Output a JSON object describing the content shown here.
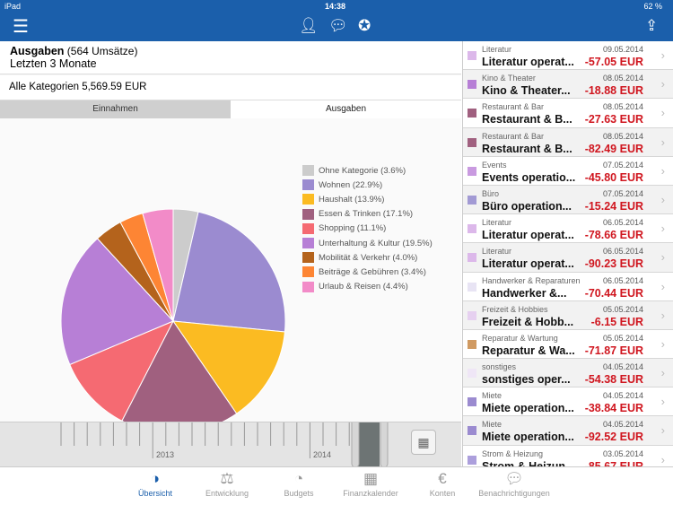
{
  "status": {
    "device": "iPad",
    "time": "14:38",
    "battery": "62 %"
  },
  "header": {
    "title": "Ausgaben",
    "count": "(564 Umsätze)",
    "period": "Letzten 3 Monate",
    "total": "Alle Kategorien 5,569.59 EUR"
  },
  "tabs": [
    {
      "label": "Einnahmen",
      "active": false
    },
    {
      "label": "Ausgaben",
      "active": true
    }
  ],
  "chart_data": {
    "type": "pie",
    "start": "top",
    "direction": "clockwise",
    "legend": "right",
    "slices": [
      {
        "name": "Ohne Kategorie (3.6%)",
        "value": 3.6,
        "color": "#cccccc"
      },
      {
        "name": "Wohnen (22.9%)",
        "value": 22.9,
        "color": "#9b8bd0"
      },
      {
        "name": "Haushalt (13.9%)",
        "value": 13.9,
        "color": "#fbbb22"
      },
      {
        "name": "Essen & Trinken (17.1%)",
        "value": 17.1,
        "color": "#a0607f"
      },
      {
        "name": "Shopping (11.1%)",
        "value": 11.1,
        "color": "#f56a72"
      },
      {
        "name": "Unterhaltung & Kultur (19.5%)",
        "value": 19.5,
        "color": "#b77fd6"
      },
      {
        "name": "Mobilität & Verkehr (4.0%)",
        "value": 4.0,
        "color": "#b4631c"
      },
      {
        "name": "Beiträge & Gebühren (3.4%)",
        "value": 3.4,
        "color": "#fd8534"
      },
      {
        "name": "Urlaub & Reisen (4.4%)",
        "value": 4.4,
        "color": "#f28bc8"
      }
    ]
  },
  "timeline": {
    "labels": [
      "2013",
      "2014"
    ]
  },
  "transactions": [
    {
      "cat": "Literatur",
      "date": "09.05.2014",
      "name": "Literatur operat...",
      "amount": "-57.05 EUR",
      "color": "#dcb8ea"
    },
    {
      "cat": "Kino & Theater",
      "date": "08.05.2014",
      "name": "Kino & Theater...",
      "amount": "-18.88 EUR",
      "color": "#b77fd6"
    },
    {
      "cat": "Restaurant & Bar",
      "date": "08.05.2014",
      "name": "Restaurant & B...",
      "amount": "-27.63 EUR",
      "color": "#a0607f"
    },
    {
      "cat": "Restaurant & Bar",
      "date": "08.05.2014",
      "name": "Restaurant & B...",
      "amount": "-82.49 EUR",
      "color": "#a0607f"
    },
    {
      "cat": "Events",
      "date": "07.05.2014",
      "name": "Events operatio...",
      "amount": "-45.80 EUR",
      "color": "#c99ae0"
    },
    {
      "cat": "Büro",
      "date": "07.05.2014",
      "name": "Büro operation...",
      "amount": "-15.24 EUR",
      "color": "#a29ad4"
    },
    {
      "cat": "Literatur",
      "date": "06.05.2014",
      "name": "Literatur operat...",
      "amount": "-78.66 EUR",
      "color": "#dcb8ea"
    },
    {
      "cat": "Literatur",
      "date": "06.05.2014",
      "name": "Literatur operat...",
      "amount": "-90.23 EUR",
      "color": "#dcb8ea"
    },
    {
      "cat": "Handwerker & Reparaturen",
      "date": "06.05.2014",
      "name": "Handwerker &...",
      "amount": "-70.44 EUR",
      "color": "#e8e4f4"
    },
    {
      "cat": "Freizeit & Hobbies",
      "date": "05.05.2014",
      "name": "Freizeit & Hobb...",
      "amount": "-6.15 EUR",
      "color": "#e6d0f0"
    },
    {
      "cat": "Reparatur & Wartung",
      "date": "05.05.2014",
      "name": "Reparatur & Wa...",
      "amount": "-71.87 EUR",
      "color": "#d09a62"
    },
    {
      "cat": "sonstiges",
      "date": "04.05.2014",
      "name": "sonstiges oper...",
      "amount": "-54.38 EUR",
      "color": "#efe6f6"
    },
    {
      "cat": "Miete",
      "date": "04.05.2014",
      "name": "Miete operation...",
      "amount": "-38.84 EUR",
      "color": "#9b8bd0"
    },
    {
      "cat": "Miete",
      "date": "04.05.2014",
      "name": "Miete operation...",
      "amount": "-92.52 EUR",
      "color": "#9b8bd0"
    },
    {
      "cat": "Strom & Heizung",
      "date": "03.05.2014",
      "name": "Strom & Heizun...",
      "amount": "-85.67 EUR",
      "color": "#ac9fdc"
    }
  ],
  "tabbar": [
    {
      "label": "Übersicht",
      "icon": "pie-icon",
      "active": true
    },
    {
      "label": "Entwicklung",
      "icon": "scale-icon"
    },
    {
      "label": "Budgets",
      "icon": "gauge-icon"
    },
    {
      "label": "Finanzkalender",
      "icon": "calendar-icon"
    },
    {
      "label": "Konten",
      "icon": "wallet-icon"
    },
    {
      "label": "Benachrichtigungen",
      "icon": "chat-icon"
    }
  ],
  "accent": "#1b5fab",
  "amount_color": "#d0161f"
}
